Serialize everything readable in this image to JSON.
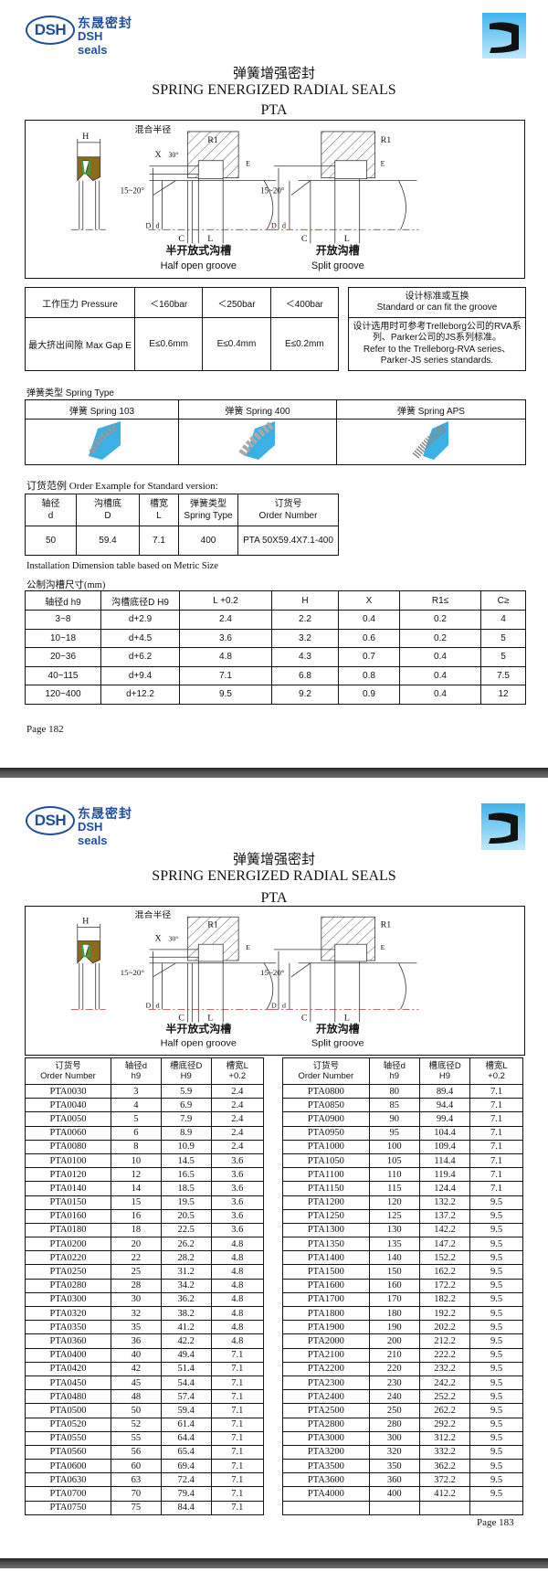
{
  "brand": {
    "logo_mark": "DSH",
    "logo_cn": "东晟密封",
    "logo_en": "DSH seals",
    "primary_color": "#1f4f9c",
    "icon": "u-cup-seal-icon"
  },
  "header": {
    "title_cn": "弹簧增强密封",
    "title_en": "SPRING ENERGIZED RADIAL SEALS",
    "code": "PTA"
  },
  "diagram": {
    "labels": {
      "H": "H",
      "X": "X",
      "angle30": "30°",
      "blend_radius": "混合半径",
      "R1": "R1",
      "E": "E",
      "angle15_20": "15~20°",
      "D": "D",
      "d": "d",
      "C": "C",
      "L": "L"
    },
    "half_open_cn": "半开放式沟槽",
    "half_open_en": "Half open groove",
    "split_cn": "开放沟槽",
    "split_en": "Split groove"
  },
  "page1": {
    "pressure_table": {
      "row1": [
        "工作压力 Pressure",
        "＜160bar",
        "＜250bar",
        "＜400bar"
      ],
      "row2": [
        "最大挤出间隙 Max Gap E",
        "E≤0.6mm",
        "E≤0.4mm",
        "E≤0.2mm"
      ]
    },
    "standard": {
      "title_cn": "设计标准或互换",
      "title_en": "Standard or can fit the groove",
      "body_cn": "设计选用时可参考Trelleborg公司的RVA系列、Parker公司的JS系列标准。",
      "body_en": "Refer to the Trelleborg-RVA series、Parker-JS series standards."
    },
    "spring_type_label": "弹簧类型 Spring Type",
    "springs": [
      "弹簧 Spring 103",
      "弹簧 Spring 400",
      "弹簧 Spring APS"
    ],
    "order_example_label": "订货范例 Order Example for Standard version:",
    "order_example": {
      "headers": [
        [
          "轴径",
          "d"
        ],
        [
          "沟槽底",
          "D"
        ],
        [
          "槽宽",
          "L"
        ],
        [
          "弹簧类型",
          "Spring Type"
        ],
        [
          "订货号",
          "Order Number"
        ]
      ],
      "row": [
        "50",
        "59.4",
        "7.1",
        "400",
        "PTA 50X59.4X7.1-400"
      ]
    },
    "install_label_en": "Installation Dimension table based on Metric Size",
    "install_label_cn": "公制沟槽尺寸(mm)",
    "install_table": {
      "headers": [
        "轴径d  h9",
        "沟槽底径D  H9",
        "L  +0.2",
        "H",
        "X",
        "R1≤",
        "C≥"
      ],
      "rows": [
        [
          "3~8",
          "d+2.9",
          "2.4",
          "2.2",
          "0.4",
          "0.2",
          "4"
        ],
        [
          "10~18",
          "d+4.5",
          "3.6",
          "3.2",
          "0.6",
          "0.2",
          "5"
        ],
        [
          "20~36",
          "d+6.2",
          "4.8",
          "4.3",
          "0.7",
          "0.4",
          "5"
        ],
        [
          "40~115",
          "d+9.4",
          "7.1",
          "6.8",
          "0.8",
          "0.4",
          "7.5"
        ],
        [
          "120~400",
          "d+12.2",
          "9.5",
          "9.2",
          "0.9",
          "0.4",
          "12"
        ]
      ]
    },
    "page_number": "Page  182"
  },
  "page2": {
    "headers": [
      [
        "订货号",
        "Order Number"
      ],
      [
        "轴径d",
        "h9"
      ],
      [
        "槽底径D",
        "H9"
      ],
      [
        "槽宽L",
        "+0.2"
      ]
    ],
    "left_rows": [
      [
        "PTA0030",
        "3",
        "5.9",
        "2.4"
      ],
      [
        "PTA0040",
        "4",
        "6.9",
        "2.4"
      ],
      [
        "PTA0050",
        "5",
        "7.9",
        "2.4"
      ],
      [
        "PTA0060",
        "6",
        "8.9",
        "2.4"
      ],
      [
        "PTA0080",
        "8",
        "10.9",
        "2.4"
      ],
      [
        "PTA0100",
        "10",
        "14.5",
        "3.6"
      ],
      [
        "PTA0120",
        "12",
        "16.5",
        "3.6"
      ],
      [
        "PTA0140",
        "14",
        "18.5",
        "3.6"
      ],
      [
        "PTA0150",
        "15",
        "19.5",
        "3.6"
      ],
      [
        "PTA0160",
        "16",
        "20.5",
        "3.6"
      ],
      [
        "PTA0180",
        "18",
        "22.5",
        "3.6"
      ],
      [
        "PTA0200",
        "20",
        "26.2",
        "4.8"
      ],
      [
        "PTA0220",
        "22",
        "28.2",
        "4.8"
      ],
      [
        "PTA0250",
        "25",
        "31.2",
        "4.8"
      ],
      [
        "PTA0280",
        "28",
        "34.2",
        "4.8"
      ],
      [
        "PTA0300",
        "30",
        "36.2",
        "4.8"
      ],
      [
        "PTA0320",
        "32",
        "38.2",
        "4.8"
      ],
      [
        "PTA0350",
        "35",
        "41.2",
        "4.8"
      ],
      [
        "PTA0360",
        "36",
        "42.2",
        "4.8"
      ],
      [
        "PTA0400",
        "40",
        "49.4",
        "7.1"
      ],
      [
        "PTA0420",
        "42",
        "51.4",
        "7.1"
      ],
      [
        "PTA0450",
        "45",
        "54.4",
        "7.1"
      ],
      [
        "PTA0480",
        "48",
        "57.4",
        "7.1"
      ],
      [
        "PTA0500",
        "50",
        "59.4",
        "7.1"
      ],
      [
        "PTA0520",
        "52",
        "61.4",
        "7.1"
      ],
      [
        "PTA0550",
        "55",
        "64.4",
        "7.1"
      ],
      [
        "PTA0560",
        "56",
        "65.4",
        "7.1"
      ],
      [
        "PTA0600",
        "60",
        "69.4",
        "7.1"
      ],
      [
        "PTA0630",
        "63",
        "72.4",
        "7.1"
      ],
      [
        "PTA0700",
        "70",
        "79.4",
        "7.1"
      ],
      [
        "PTA0750",
        "75",
        "84.4",
        "7.1"
      ]
    ],
    "right_rows": [
      [
        "PTA0800",
        "80",
        "89.4",
        "7.1"
      ],
      [
        "PTA0850",
        "85",
        "94.4",
        "7.1"
      ],
      [
        "PTA0900",
        "90",
        "99.4",
        "7.1"
      ],
      [
        "PTA0950",
        "95",
        "104.4",
        "7.1"
      ],
      [
        "PTA1000",
        "100",
        "109.4",
        "7.1"
      ],
      [
        "PTA1050",
        "105",
        "114.4",
        "7.1"
      ],
      [
        "PTA1100",
        "110",
        "119.4",
        "7.1"
      ],
      [
        "PTA1150",
        "115",
        "124.4",
        "7.1"
      ],
      [
        "PTA1200",
        "120",
        "132.2",
        "9.5"
      ],
      [
        "PTA1250",
        "125",
        "137.2",
        "9.5"
      ],
      [
        "PTA1300",
        "130",
        "142.2",
        "9.5"
      ],
      [
        "PTA1350",
        "135",
        "147.2",
        "9.5"
      ],
      [
        "PTA1400",
        "140",
        "152.2",
        "9.5"
      ],
      [
        "PTA1500",
        "150",
        "162.2",
        "9.5"
      ],
      [
        "PTA1600",
        "160",
        "172.2",
        "9.5"
      ],
      [
        "PTA1700",
        "170",
        "182.2",
        "9.5"
      ],
      [
        "PTA1800",
        "180",
        "192.2",
        "9.5"
      ],
      [
        "PTA1900",
        "190",
        "202.2",
        "9.5"
      ],
      [
        "PTA2000",
        "200",
        "212.2",
        "9.5"
      ],
      [
        "PTA2100",
        "210",
        "222.2",
        "9.5"
      ],
      [
        "PTA2200",
        "220",
        "232.2",
        "9.5"
      ],
      [
        "PTA2300",
        "230",
        "242.2",
        "9.5"
      ],
      [
        "PTA2400",
        "240",
        "252.2",
        "9.5"
      ],
      [
        "PTA2500",
        "250",
        "262.2",
        "9.5"
      ],
      [
        "PTA2800",
        "280",
        "292.2",
        "9.5"
      ],
      [
        "PTA3000",
        "300",
        "312.2",
        "9.5"
      ],
      [
        "PTA3200",
        "320",
        "332.2",
        "9.5"
      ],
      [
        "PTA3500",
        "350",
        "362.2",
        "9.5"
      ],
      [
        "PTA3600",
        "360",
        "372.2",
        "9.5"
      ],
      [
        "PTA4000",
        "400",
        "412.2",
        "9.5"
      ]
    ],
    "page_number": "Page  183"
  }
}
